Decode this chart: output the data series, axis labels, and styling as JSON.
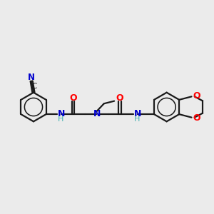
{
  "bg_color": "#ebebeb",
  "bond_color": "#1a1a1a",
  "N_color": "#0000cd",
  "O_color": "#ff0000",
  "C_color": "#1a1a1a",
  "lw": 1.6,
  "figsize": [
    3.0,
    3.0
  ],
  "dpi": 100,
  "xlim": [
    0,
    10
  ],
  "ylim": [
    2,
    8
  ]
}
